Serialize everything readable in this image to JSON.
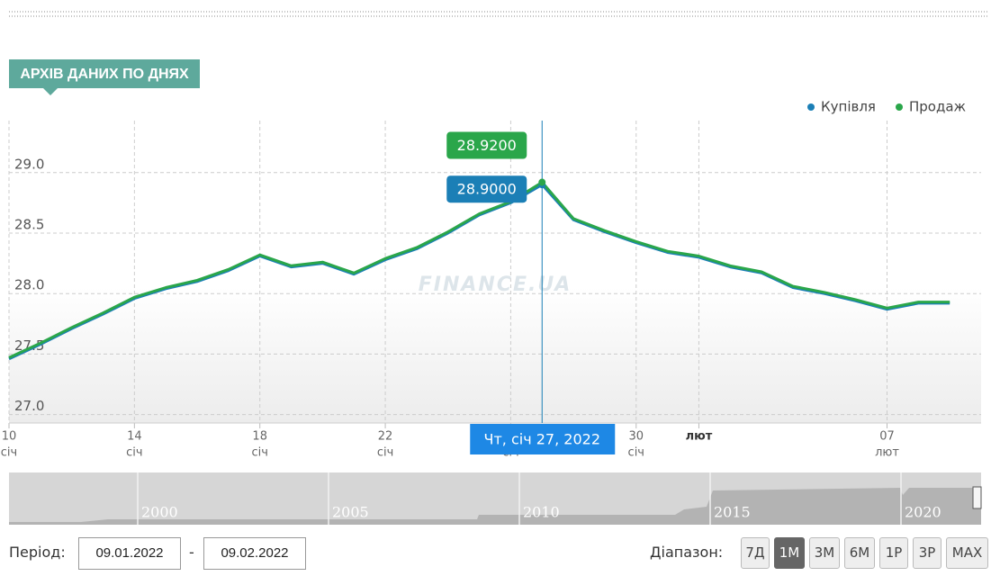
{
  "header": {
    "title": "АРХІВ ДАНИХ ПО ДНЯХ"
  },
  "chart_data": {
    "type": "line",
    "x": [
      "2022-01-10",
      "2022-01-11",
      "2022-01-12",
      "2022-01-13",
      "2022-01-14",
      "2022-01-15",
      "2022-01-16",
      "2022-01-17",
      "2022-01-18",
      "2022-01-19",
      "2022-01-20",
      "2022-01-21",
      "2022-01-22",
      "2022-01-23",
      "2022-01-24",
      "2022-01-25",
      "2022-01-26",
      "2022-01-27",
      "2022-01-28",
      "2022-01-29",
      "2022-01-30",
      "2022-01-31",
      "2022-02-01",
      "2022-02-02",
      "2022-02-03",
      "2022-02-04",
      "2022-02-05",
      "2022-02-06",
      "2022-02-07",
      "2022-02-08",
      "2022-02-09"
    ],
    "series": [
      {
        "name": "Купівля",
        "color": "#1b7fb6",
        "values": [
          27.46,
          27.58,
          27.71,
          27.83,
          27.96,
          28.04,
          28.1,
          28.19,
          28.31,
          28.22,
          28.25,
          28.16,
          28.28,
          28.37,
          28.5,
          28.65,
          28.75,
          28.9,
          28.61,
          28.51,
          28.42,
          28.34,
          28.3,
          28.22,
          28.17,
          28.05,
          28.0,
          27.94,
          27.87,
          27.92,
          27.92
        ]
      },
      {
        "name": "Продаж",
        "color": "#2aa64a",
        "values": [
          27.47,
          27.59,
          27.72,
          27.84,
          27.97,
          28.05,
          28.11,
          28.2,
          28.32,
          28.23,
          28.26,
          28.17,
          28.29,
          28.38,
          28.51,
          28.66,
          28.76,
          28.92,
          28.62,
          28.52,
          28.43,
          28.35,
          28.31,
          28.23,
          28.18,
          28.06,
          28.01,
          27.95,
          27.88,
          27.93,
          27.93
        ]
      }
    ],
    "xlim": [
      "2022-01-10",
      "2022-02-10"
    ],
    "xticks": [
      {
        "value": "2022-01-10",
        "label": "10",
        "sublabel": "січ"
      },
      {
        "value": "2022-01-14",
        "label": "14",
        "sublabel": "січ"
      },
      {
        "value": "2022-01-18",
        "label": "18",
        "sublabel": "січ"
      },
      {
        "value": "2022-01-22",
        "label": "22",
        "sublabel": "січ"
      },
      {
        "value": "2022-01-26",
        "label": "26",
        "sublabel": "січ"
      },
      {
        "value": "2022-01-30",
        "label": "30",
        "sublabel": "січ"
      },
      {
        "value": "2022-02-01",
        "label": "лют"
      },
      {
        "value": "2022-02-07",
        "label": "07",
        "sublabel": "лют"
      }
    ],
    "ylim": [
      26.93,
      29.43
    ],
    "yticks": [
      {
        "value": 27,
        "label": "27.0"
      },
      27.5,
      {
        "value": 28,
        "label": "28.0"
      },
      28.5,
      {
        "value": 29,
        "label": "29.0"
      }
    ],
    "grid": true,
    "legend": "top-right",
    "watermark": "FINANCE.UA",
    "tooltip": {
      "x": "2022-01-27",
      "x_label": "Чт, січ 27, 2022",
      "value_labels": [
        "28.9000",
        "28.9200"
      ]
    }
  },
  "navigator": {
    "years": [
      "2000",
      "2005",
      "2010",
      "2015",
      "2020"
    ]
  },
  "controls": {
    "period_label": "Період:",
    "date_from": "09.01.2022",
    "separator": "-",
    "date_to": "09.02.2022",
    "range_label": "Діапазон:",
    "ranges": [
      "7Д",
      "1М",
      "3М",
      "6М",
      "1Р",
      "3Р",
      "MAX"
    ],
    "active_range": "1М"
  }
}
